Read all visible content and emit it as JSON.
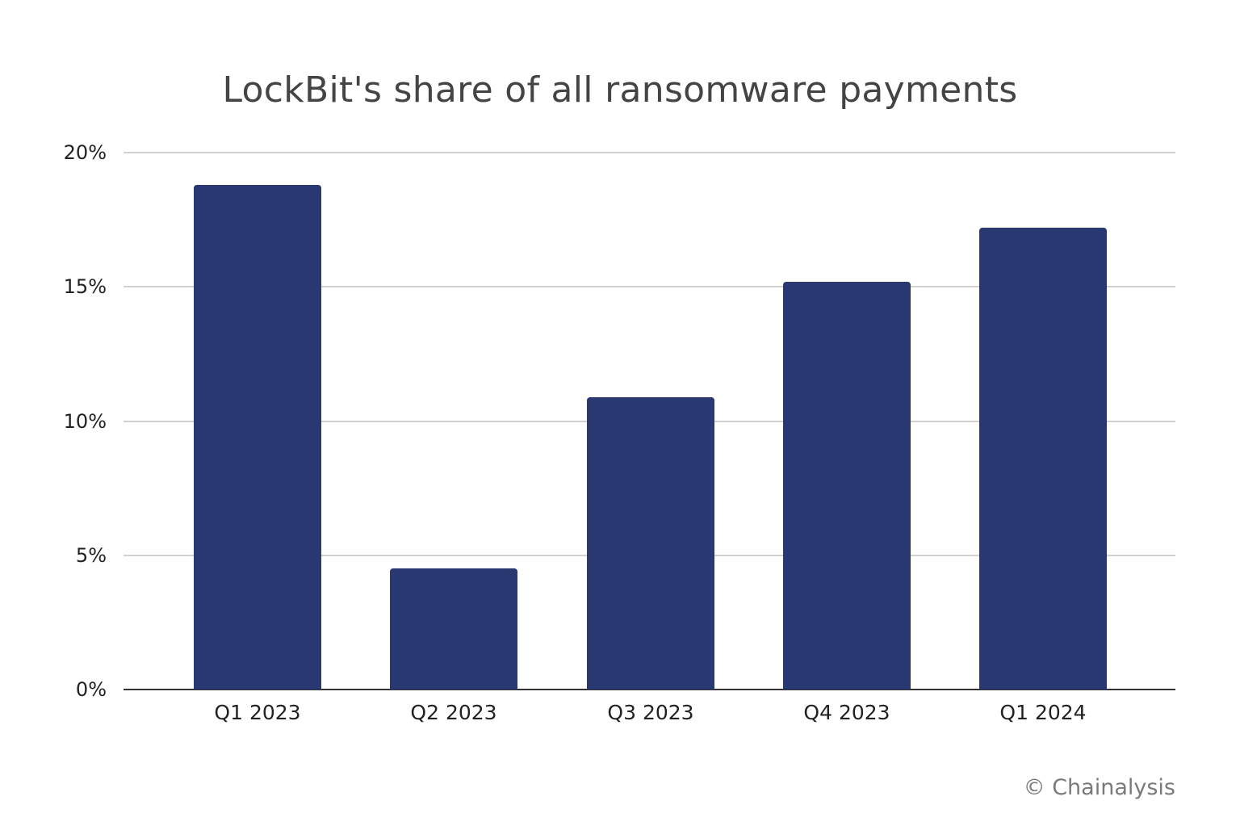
{
  "chart_data": {
    "type": "bar",
    "title": "LockBit's share of all ransomware payments",
    "categories": [
      "Q1 2023",
      "Q2 2023",
      "Q3 2023",
      "Q4 2023",
      "Q1 2024"
    ],
    "values": [
      18.8,
      4.5,
      10.9,
      15.2,
      17.2
    ],
    "unit": "%",
    "xlabel": "",
    "ylabel": "",
    "ylim": [
      0,
      20
    ],
    "yticks": [
      "0%",
      "5%",
      "10%",
      "15%",
      "20%"
    ],
    "grid": true,
    "legend": null,
    "bar_color": "#293871"
  },
  "footer": {
    "credit": "© Chainalysis"
  }
}
